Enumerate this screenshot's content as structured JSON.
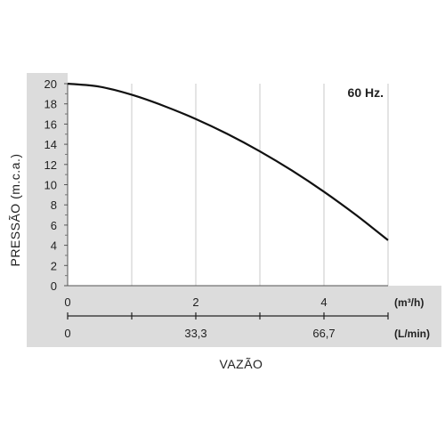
{
  "chart_data": {
    "type": "line",
    "title": "",
    "annotation": "60 Hz.",
    "ylabel": "PRESSÃO (m.c.a.)",
    "xlabel": "VAZÃO",
    "ylim": [
      0,
      20
    ],
    "yticks": [
      "0",
      "2",
      "4",
      "6",
      "8",
      "10",
      "12",
      "14",
      "16",
      "18",
      "20"
    ],
    "xlim": [
      0,
      5
    ],
    "grid": true,
    "x_axes": [
      {
        "unit": "(m³/h)",
        "ticks": [
          {
            "value": 0,
            "label": "0"
          },
          {
            "value": 2,
            "label": "2"
          },
          {
            "value": 4,
            "label": "4"
          }
        ]
      },
      {
        "unit": "(L/min)",
        "ticks": [
          {
            "value": 0,
            "label": "0"
          },
          {
            "value": 2,
            "label": "33,3"
          },
          {
            "value": 4,
            "label": "66,7"
          }
        ]
      }
    ],
    "series": [
      {
        "color": "#111111",
        "x": [
          0,
          0.5,
          1,
          1.5,
          2,
          2.5,
          3,
          3.5,
          4,
          4.5,
          5
        ],
        "y": [
          20,
          19.7,
          18.9,
          17.8,
          16.5,
          15.0,
          13.3,
          11.4,
          9.3,
          7.0,
          4.5
        ]
      }
    ]
  }
}
